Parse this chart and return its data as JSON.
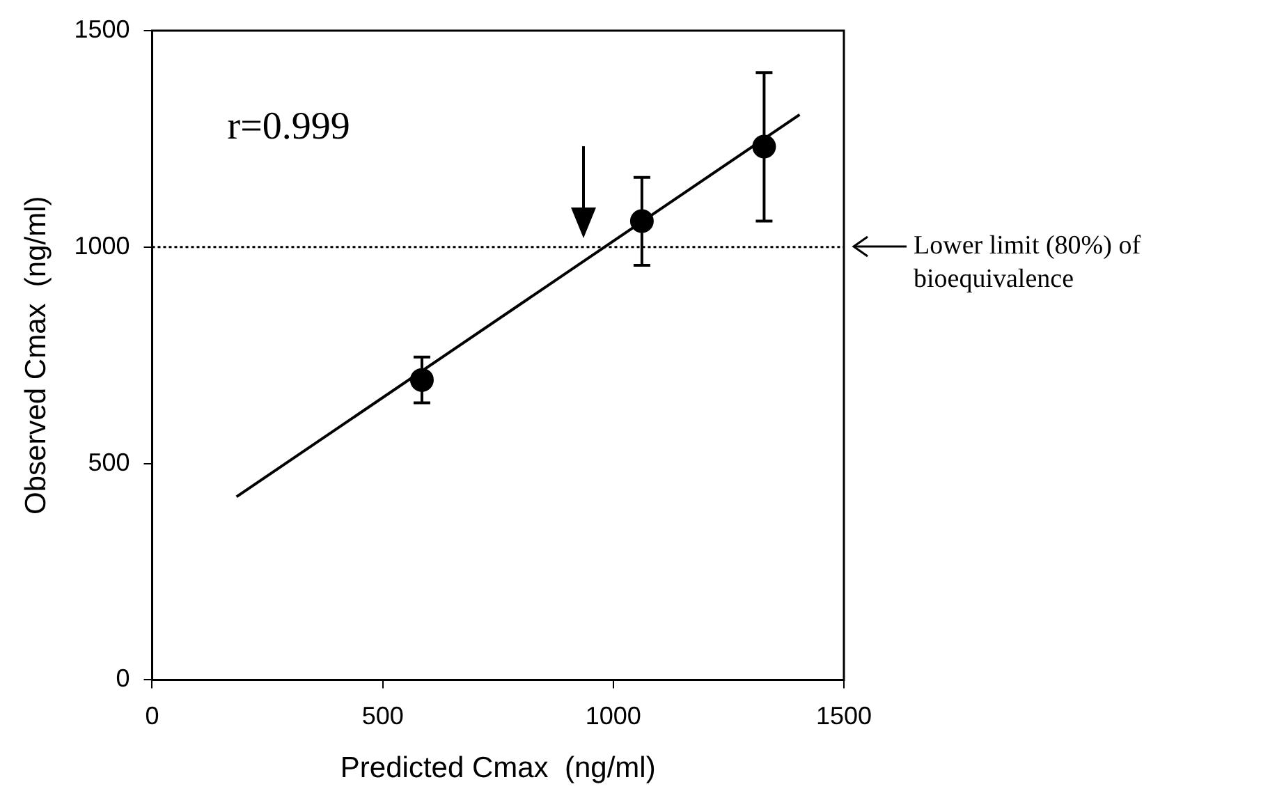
{
  "chart_data": {
    "type": "scatter",
    "xlabel": "Predicted Cmax  (ng/ml)",
    "ylabel": "Observed Cmax  (ng/ml)",
    "xlim": [
      0,
      1500
    ],
    "xticks": [
      0,
      500,
      1000,
      1500
    ],
    "ylim": [
      0,
      1500
    ],
    "yticks": [
      0,
      500,
      1000,
      1500
    ],
    "grid": false,
    "legend": false,
    "marker": "circle",
    "series": [
      {
        "type": "scatter",
        "color": "#000000",
        "x": [
          585,
          1062,
          1327
        ],
        "values": [
          693,
          1060,
          1232
        ],
        "errors": [
          [
            640,
            746
          ],
          [
            958,
            1161
          ],
          [
            1060,
            1403
          ]
        ]
      },
      {
        "type": "line",
        "color": "#000000",
        "marker": "none",
        "line_style": "solid",
        "x": [
          183,
          1404
        ],
        "values": [
          423,
          1306
        ]
      }
    ],
    "ref_lines": [
      {
        "axis": "y",
        "value": 1000,
        "label": "Lower limit (80%) of bioequivalence",
        "line_style": "dotted",
        "color": "#000000"
      }
    ],
    "annotations": [
      "r=0.999"
    ]
  }
}
